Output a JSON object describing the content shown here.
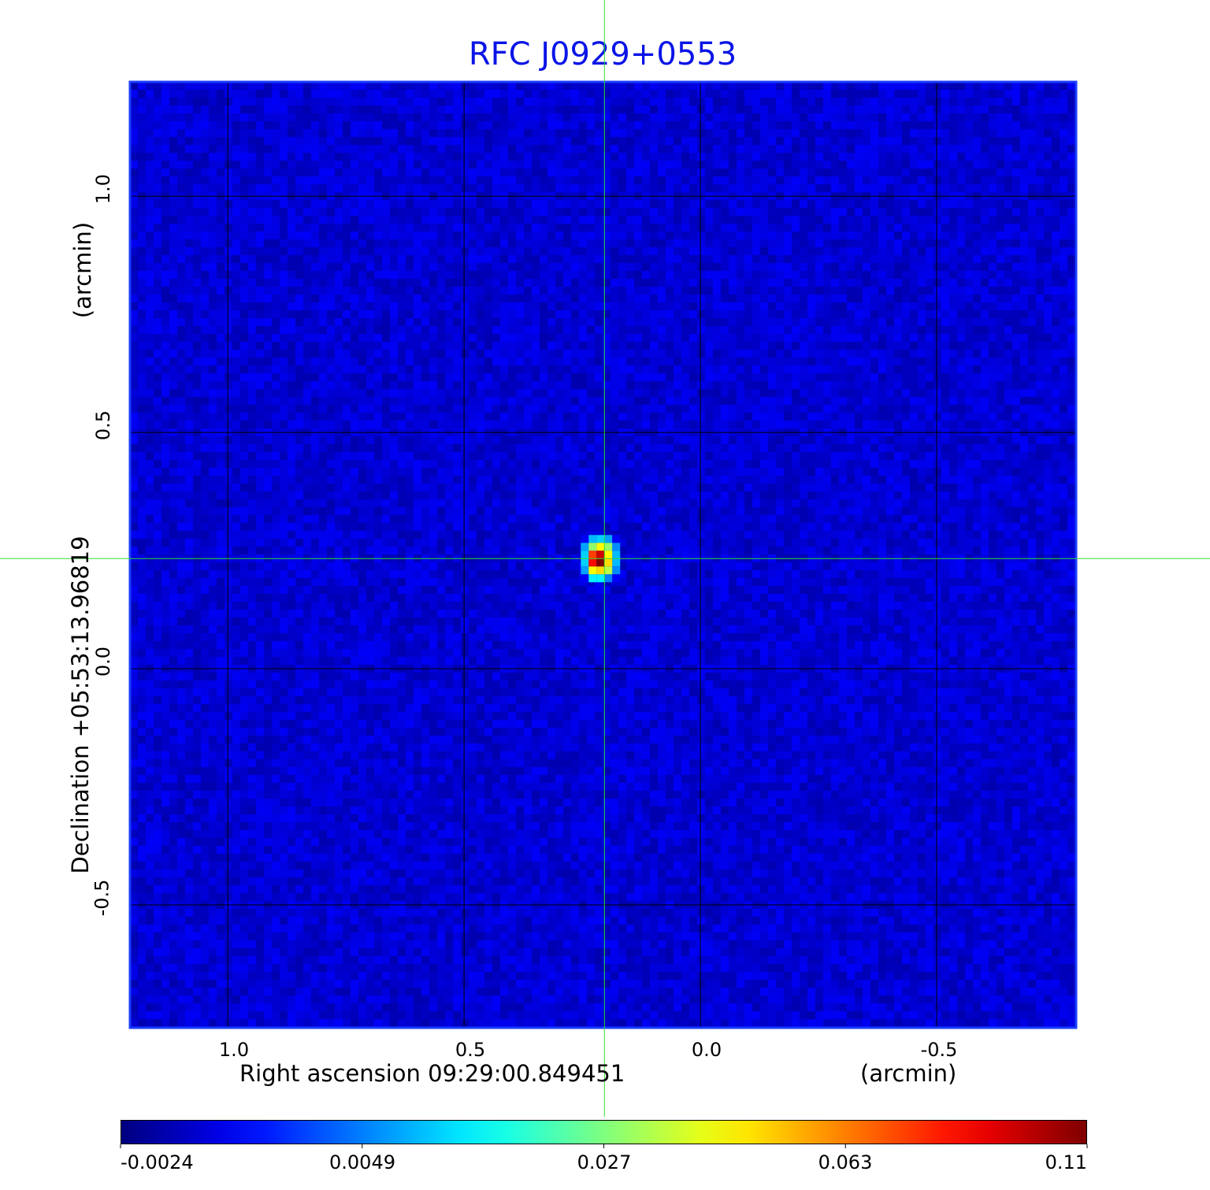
{
  "chart_data": {
    "type": "heatmap",
    "title": "RFC J0929+0553",
    "xlabel": "Right ascension  09:29:00.849451",
    "xunit": "(arcmin)",
    "ylabel": "Declination  +05:53:13.96819",
    "yunit": "(arcmin)",
    "xlim": [
      1.207,
      -0.795
    ],
    "ylim": [
      -0.76,
      1.242
    ],
    "x_ticks": [
      "1.0",
      "0.5",
      "0.0",
      "-0.5"
    ],
    "x_tick_values": [
      1.0,
      0.5,
      0.0,
      -0.5
    ],
    "y_ticks": [
      "1.0",
      "0.5",
      "0.0",
      "-0.5"
    ],
    "y_tick_values": [
      1.0,
      0.5,
      0.0,
      -0.5
    ],
    "grid": true,
    "grid_color": "#000000",
    "crosshair": {
      "x": 0.203,
      "y": 0.233,
      "color": "#33dd33"
    },
    "colormap": "jet",
    "colorbar": {
      "ticks": [
        "-0.0024",
        "0.0049",
        "0.027",
        "0.063",
        "0.11"
      ],
      "tick_values": [
        -0.0024,
        0.0049,
        0.027,
        0.063,
        0.11
      ],
      "orientation": "horizontal",
      "placement": "bottom"
    },
    "background_level": 0.0,
    "source": {
      "ra_offset": 0.203,
      "dec_offset": 0.233,
      "peak": 0.11,
      "matrix": [
        [
          0.001,
          0.01,
          0.012,
          0.008,
          0.001
        ],
        [
          0.008,
          0.03,
          0.045,
          0.03,
          0.006
        ],
        [
          0.012,
          0.075,
          0.095,
          0.045,
          0.01
        ],
        [
          0.012,
          0.085,
          0.11,
          0.05,
          0.01
        ],
        [
          0.008,
          0.045,
          0.05,
          0.035,
          0.006
        ],
        [
          0.001,
          0.015,
          0.015,
          0.005,
          0.001
        ]
      ]
    }
  }
}
